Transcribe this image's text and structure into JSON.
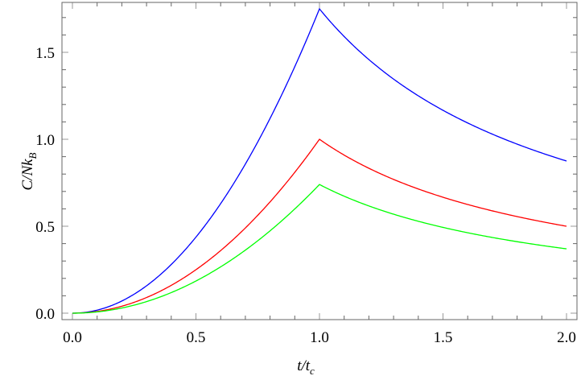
{
  "chart_data": {
    "type": "line",
    "title": "",
    "xlabel": "t/t_c",
    "ylabel": "C/Nk_B",
    "xlim": [
      0.0,
      2.0
    ],
    "ylim": [
      0.0,
      1.77
    ],
    "xticks": [
      "0.0",
      "0.5",
      "1.0",
      "1.5",
      "2.0"
    ],
    "yticks": [
      "0.0",
      "0.5",
      "1.0",
      "1.5"
    ],
    "grid": false,
    "legend": null,
    "x": [
      0.0,
      0.1,
      0.2,
      0.3,
      0.4,
      0.5,
      0.6,
      0.7,
      0.8,
      0.9,
      1.0,
      1.1,
      1.2,
      1.3,
      1.4,
      1.5,
      1.6,
      1.7,
      1.8,
      1.9,
      2.0
    ],
    "series": [
      {
        "name": "blue",
        "color": "#0000ff",
        "values": [
          0.0,
          0.0175,
          0.07,
          0.1575,
          0.28,
          0.4375,
          0.63,
          0.8575,
          1.12,
          1.4175,
          1.75,
          1.591,
          1.458,
          1.346,
          1.25,
          1.167,
          1.094,
          1.029,
          0.972,
          0.921,
          0.875
        ]
      },
      {
        "name": "red",
        "color": "#ff0000",
        "values": [
          0.0,
          0.01,
          0.04,
          0.09,
          0.16,
          0.25,
          0.36,
          0.49,
          0.64,
          0.81,
          1.0,
          0.909,
          0.833,
          0.769,
          0.714,
          0.667,
          0.625,
          0.588,
          0.556,
          0.526,
          0.5
        ]
      },
      {
        "name": "green",
        "color": "#00ff00",
        "values": [
          0.0,
          0.0074,
          0.0296,
          0.0666,
          0.1184,
          0.185,
          0.2664,
          0.3626,
          0.4736,
          0.5994,
          0.74,
          0.673,
          0.617,
          0.569,
          0.529,
          0.493,
          0.463,
          0.435,
          0.411,
          0.389,
          0.37
        ]
      }
    ]
  },
  "labels": {
    "x_axis_main": "t/t",
    "x_axis_sub": "c",
    "y_axis_main": "C/Nk",
    "y_axis_sub": "B"
  }
}
